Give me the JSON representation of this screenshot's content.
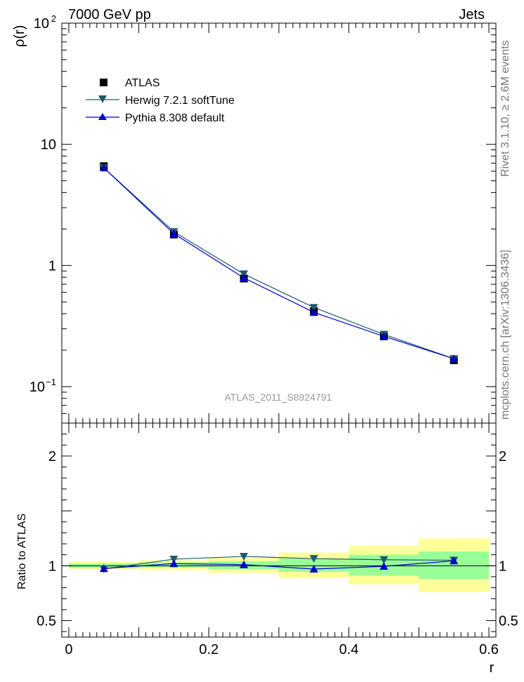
{
  "header": {
    "left": "7000 GeV pp",
    "right": "Jets"
  },
  "side_text": {
    "rivet": "Rivet 3.1.10, ≥ 2.6M events",
    "mcplots": "mcplots.cern.ch [arXiv:1306.3436]"
  },
  "analysis_label": "ATLAS_2011_S8924791",
  "xlabel": "r",
  "colors": {
    "herwig": "#1f5a6b",
    "pythia": "#0000cc",
    "data": "#000000",
    "band_yellow": "#ffff99",
    "band_green": "#99ff99"
  },
  "chart_data": [
    {
      "type": "line",
      "panel": "main",
      "ylabel": "ρ(r)",
      "xlim": [
        -0.01,
        0.61
      ],
      "ylim": [
        0.05,
        100
      ],
      "yscale": "log",
      "ytick_labels": [
        {
          "value": 100,
          "base": "10",
          "exp": "2"
        },
        {
          "value": 10,
          "base": "10",
          "exp": ""
        },
        {
          "value": 1,
          "base": "1",
          "exp": ""
        },
        {
          "value": 0.1,
          "base": "10",
          "exp": "−1"
        }
      ],
      "x": [
        0.05,
        0.15,
        0.25,
        0.35,
        0.45,
        0.55
      ],
      "series": [
        {
          "name": "ATLAS",
          "marker": "square",
          "values": [
            6.6,
            1.8,
            0.78,
            0.42,
            0.26,
            0.165
          ]
        },
        {
          "name": "Herwig 7.2.1 softTune",
          "marker": "triangle-down",
          "values": [
            6.4,
            1.9,
            0.85,
            0.45,
            0.27,
            0.17
          ]
        },
        {
          "name": "Pythia 8.308 default",
          "marker": "triangle-up",
          "values": [
            6.4,
            1.83,
            0.79,
            0.41,
            0.26,
            0.17
          ]
        }
      ],
      "legend": "top-left"
    },
    {
      "type": "line",
      "panel": "ratio",
      "ylabel": "Ratio to ATLAS",
      "xlim": [
        -0.01,
        0.61
      ],
      "ylim": [
        0.35,
        2.3
      ],
      "ytick_labels": [
        "2",
        "1",
        "0.5"
      ],
      "yticks": [
        2,
        1,
        0.5
      ],
      "xtick_labels": [
        "0",
        "0.2",
        "0.4",
        "0.6"
      ],
      "xticks": [
        0,
        0.2,
        0.4,
        0.6
      ],
      "bins": [
        [
          0.0,
          0.1
        ],
        [
          0.1,
          0.2
        ],
        [
          0.2,
          0.3
        ],
        [
          0.3,
          0.4
        ],
        [
          0.4,
          0.5
        ],
        [
          0.5,
          0.6
        ]
      ],
      "band_green": [
        [
          0.98,
          1.02
        ],
        [
          0.985,
          1.03
        ],
        [
          0.97,
          1.04
        ],
        [
          0.945,
          1.065
        ],
        [
          0.91,
          1.1
        ],
        [
          0.88,
          1.13
        ]
      ],
      "band_yellow": [
        [
          0.97,
          1.035
        ],
        [
          0.96,
          1.05
        ],
        [
          0.935,
          1.07
        ],
        [
          0.89,
          1.12
        ],
        [
          0.83,
          1.18
        ],
        [
          0.76,
          1.25
        ]
      ],
      "x": [
        0.05,
        0.15,
        0.25,
        0.35,
        0.45,
        0.55
      ],
      "series": [
        {
          "name": "Herwig 7.2.1 softTune",
          "marker": "triangle-down",
          "values": [
            0.97,
            1.06,
            1.085,
            1.065,
            1.055,
            1.05
          ]
        },
        {
          "name": "Pythia 8.308 default",
          "marker": "triangle-up",
          "values": [
            0.975,
            1.02,
            1.01,
            0.97,
            0.995,
            1.045
          ]
        }
      ]
    }
  ]
}
